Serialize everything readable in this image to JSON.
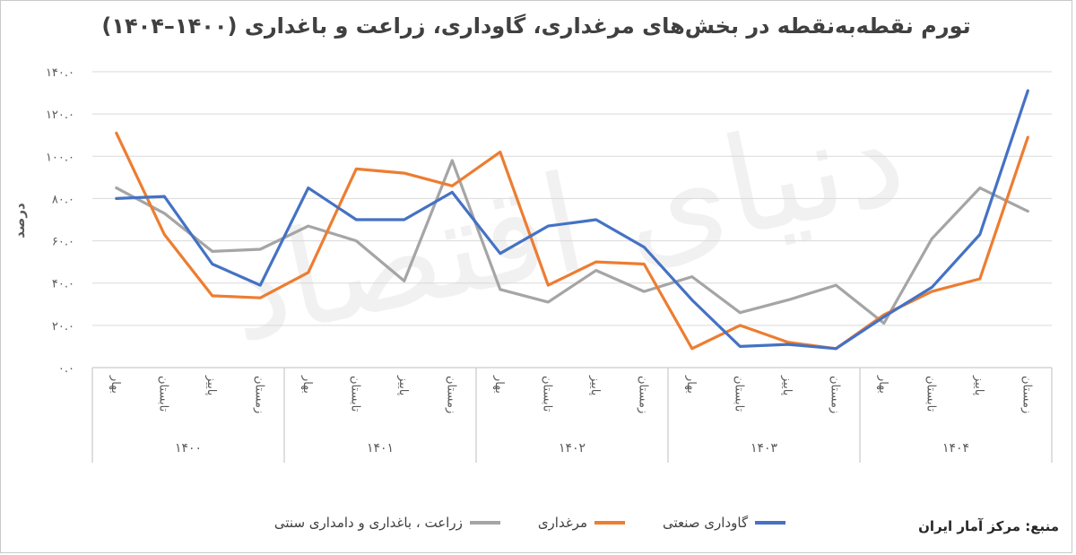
{
  "chart_data": {
    "type": "line",
    "title": "تورم نقطه‌به‌نقطه در بخش‌های مرغداری، گاوداری، زراعت و باغداری (۱۴۰۰–۱۴۰۴)",
    "ylabel": "درصد",
    "xlabel": "",
    "ylim": [
      0,
      140
    ],
    "yticks": [
      "۰.۰",
      "۲۰.۰",
      "۴۰.۰",
      "۶۰.۰",
      "۸۰.۰",
      "۱۰۰.۰",
      "۱۲۰.۰",
      "۱۴۰.۰"
    ],
    "groups": [
      {
        "year": "۱۴۰۰",
        "seasons": [
          "بهار",
          "تابستان",
          "پاییز",
          "زمستان"
        ]
      },
      {
        "year": "۱۴۰۱",
        "seasons": [
          "بهار",
          "تابستان",
          "پاییز",
          "زمستان"
        ]
      },
      {
        "year": "۱۴۰۲",
        "seasons": [
          "بهار",
          "تابستان",
          "پاییز",
          "زمستان"
        ]
      },
      {
        "year": "۱۴۰۳",
        "seasons": [
          "بهار",
          "تابستان",
          "پاییز",
          "زمستان"
        ]
      },
      {
        "year": "۱۴۰۴",
        "seasons": [
          "بهار",
          "تابستان",
          "پاییز",
          "زمستان"
        ]
      }
    ],
    "series": [
      {
        "name": "گاوداری صنعتی",
        "color": "#4472c4",
        "values": [
          80,
          81,
          49,
          39,
          85,
          70,
          70,
          83,
          54,
          67,
          70,
          57,
          32,
          10,
          11,
          9,
          24,
          38,
          63,
          131
        ]
      },
      {
        "name": "مرغداری",
        "color": "#ed7d31",
        "values": [
          111,
          63,
          34,
          33,
          45,
          94,
          92,
          86,
          102,
          39,
          50,
          49,
          9,
          20,
          12,
          9,
          25,
          36,
          42,
          109
        ]
      },
      {
        "name": "زراعت ، باغداری و دامداری سنتی",
        "color": "#a5a5a5",
        "values": [
          85,
          73,
          55,
          56,
          67,
          60,
          41,
          98,
          37,
          31,
          46,
          36,
          43,
          26,
          32,
          39,
          21,
          61,
          85,
          74
        ]
      }
    ],
    "grid": true,
    "legend_position": "bottom"
  },
  "source": "منبع: مرکز آمار ایران",
  "watermark": "دنیای اقتصاد"
}
